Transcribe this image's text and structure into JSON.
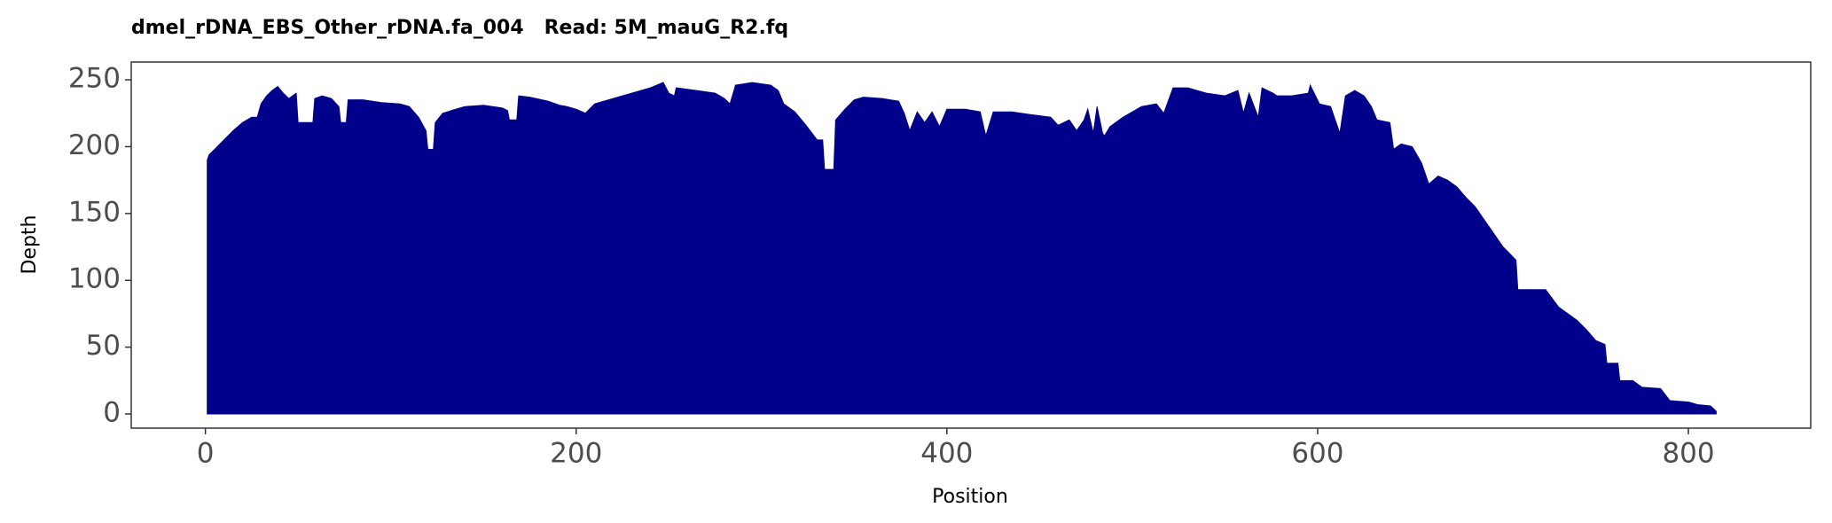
{
  "chart_data": {
    "type": "area",
    "title": "dmel_rDNA_EBS_Other_rDNA.fa_004   Read: 5M_mauG_R2.fq",
    "x_label": "Position",
    "y_label": "Depth",
    "color": "#00008b",
    "x": [
      1,
      2,
      5,
      10,
      15,
      20,
      25,
      28,
      30,
      33,
      36,
      39,
      42,
      45,
      49,
      50,
      55,
      58,
      59,
      63,
      68,
      72,
      73,
      76,
      77,
      85,
      95,
      105,
      110,
      115,
      119,
      120,
      123,
      124,
      128,
      135,
      140,
      150,
      160,
      163,
      164,
      168,
      169,
      175,
      185,
      191,
      195,
      200,
      205,
      210,
      220,
      230,
      240,
      247,
      250,
      253,
      254,
      265,
      275,
      280,
      283,
      286,
      295,
      305,
      309,
      312,
      318,
      324,
      330,
      333,
      334,
      339,
      340,
      345,
      350,
      355,
      365,
      374,
      377,
      380,
      384,
      388,
      392,
      396,
      400,
      410,
      418,
      421,
      425,
      435,
      445,
      456,
      460,
      466,
      470,
      474,
      476,
      479,
      481,
      484,
      485,
      488,
      495,
      505,
      513,
      517,
      522,
      530,
      540,
      550,
      557,
      560,
      563,
      568,
      570,
      576,
      578,
      586,
      595,
      596,
      601,
      607,
      612,
      615,
      620,
      625,
      629,
      632,
      639,
      641,
      645,
      651,
      656,
      660,
      665,
      670,
      675,
      680,
      685,
      690,
      695,
      700,
      705,
      707,
      708,
      715,
      723,
      730,
      735,
      740,
      745,
      750,
      755,
      756,
      762,
      763,
      770,
      775,
      785,
      790,
      800,
      805,
      812,
      815
    ],
    "values": [
      190,
      194,
      198,
      205,
      212,
      218,
      222,
      222,
      232,
      238,
      242,
      245,
      240,
      236,
      240,
      218,
      218,
      218,
      236,
      238,
      236,
      230,
      218,
      218,
      235,
      235,
      233,
      232,
      230,
      222,
      212,
      198,
      198,
      218,
      225,
      228,
      230,
      231,
      229,
      227,
      220,
      220,
      238,
      237,
      234,
      231,
      230,
      228,
      225,
      232,
      236,
      240,
      244,
      248,
      240,
      238,
      244,
      242,
      240,
      236,
      232,
      246,
      248,
      246,
      242,
      232,
      226,
      216,
      205,
      205,
      183,
      183,
      220,
      228,
      235,
      237,
      236,
      234,
      225,
      212,
      226,
      218,
      226,
      215,
      228,
      228,
      226,
      208,
      226,
      226,
      224,
      222,
      216,
      220,
      212,
      220,
      228,
      210,
      230,
      210,
      208,
      215,
      222,
      230,
      232,
      225,
      244,
      244,
      240,
      238,
      242,
      225,
      240,
      222,
      244,
      240,
      238,
      238,
      240,
      246,
      232,
      230,
      210,
      238,
      242,
      238,
      230,
      220,
      218,
      198,
      202,
      200,
      188,
      172,
      178,
      175,
      170,
      162,
      155,
      145,
      135,
      125,
      118,
      115,
      93,
      93,
      93,
      80,
      75,
      70,
      63,
      55,
      52,
      38,
      38,
      25,
      25,
      20,
      19,
      10,
      9,
      7,
      6,
      2
    ],
    "xlim": [
      -40,
      866
    ],
    "ylim": [
      -10.6,
      263.3
    ],
    "xticks": [
      0,
      200,
      400,
      600,
      800
    ],
    "yticks": [
      0,
      50,
      100,
      150,
      200,
      250
    ]
  }
}
